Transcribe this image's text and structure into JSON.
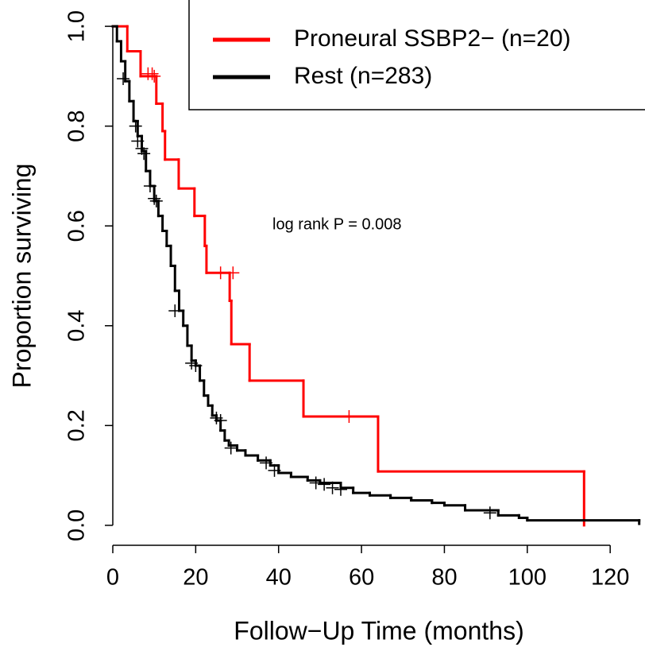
{
  "chart_data": {
    "type": "step",
    "x_label": "Follow−Up Time (months)",
    "y_label": "Proportion surviving",
    "annotation": "log rank P = 0.008",
    "xlim": [
      0,
      128.4
    ],
    "ylim": [
      -0.04,
      1.04
    ],
    "xticks": [
      0,
      20,
      40,
      60,
      80,
      100,
      120
    ],
    "yticks": [
      {
        "value": 0,
        "label": "0.0"
      },
      0.2,
      0.4,
      0.6,
      0.8,
      {
        "value": 1,
        "label": "1.0"
      }
    ],
    "series": [
      {
        "name": "Proneural SSBP2− (n=20)",
        "color": "#ff0000",
        "x": [
          0,
          3.5,
          6.7,
          10.5,
          12,
          12.6,
          15.9,
          19.7,
          22.2,
          22.6,
          28.2,
          28.6,
          33,
          46,
          64,
          113.7
        ],
        "values": [
          1.0,
          0.95,
          0.9,
          0.845,
          0.79,
          0.733,
          0.675,
          0.62,
          0.56,
          0.506,
          0.45,
          0.363,
          0.29,
          0.218,
          0.108,
          0
        ],
        "censor_x": [
          8.5,
          9.5,
          10,
          26,
          29,
          57
        ],
        "censor_values": [
          0.905,
          0.905,
          0.9,
          0.506,
          0.506,
          0.218
        ]
      },
      {
        "name": "Rest (n=283)",
        "color": "#000000",
        "x": [
          0,
          1,
          2,
          3,
          4,
          5,
          6,
          7,
          8,
          9,
          10,
          11,
          12,
          13,
          14,
          15,
          16,
          17,
          18,
          19,
          20,
          21,
          22,
          23,
          24,
          25,
          26,
          27,
          28,
          30,
          32,
          35,
          38,
          40,
          43,
          47,
          50,
          55,
          58,
          62,
          67,
          72,
          77,
          80,
          85,
          93,
          98,
          100,
          127
        ],
        "values": [
          1.0,
          0.97,
          0.93,
          0.89,
          0.85,
          0.81,
          0.78,
          0.75,
          0.71,
          0.68,
          0.65,
          0.62,
          0.59,
          0.56,
          0.52,
          0.47,
          0.43,
          0.4,
          0.36,
          0.33,
          0.32,
          0.29,
          0.26,
          0.24,
          0.22,
          0.21,
          0.19,
          0.17,
          0.16,
          0.15,
          0.14,
          0.13,
          0.12,
          0.105,
          0.097,
          0.09,
          0.085,
          0.075,
          0.065,
          0.06,
          0.055,
          0.05,
          0.045,
          0.04,
          0.03,
          0.02,
          0.015,
          0.01,
          0.003
        ],
        "censor_x": [
          2.5,
          5.5,
          6,
          7,
          7.5,
          9,
          10,
          10.5,
          15,
          19,
          20,
          25,
          26,
          28.5,
          37,
          39,
          49,
          51,
          53,
          55,
          91
        ],
        "censor_values": [
          0.895,
          0.8,
          0.77,
          0.755,
          0.745,
          0.68,
          0.655,
          0.65,
          0.43,
          0.325,
          0.32,
          0.215,
          0.21,
          0.155,
          0.125,
          0.11,
          0.085,
          0.082,
          0.075,
          0.072,
          0.025
        ]
      }
    ]
  }
}
